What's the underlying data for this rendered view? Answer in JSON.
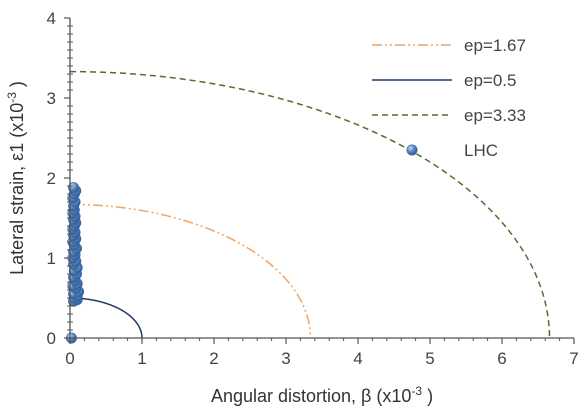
{
  "chart_data": {
    "type": "scatter",
    "title": "",
    "xlabel": {
      "main": "Angular distortion,  β (x10",
      "sup": "-3",
      "tail": " )"
    },
    "ylabel": {
      "main": "Lateral strain,  ε1 (x10",
      "sup": "-3",
      "tail": " )"
    },
    "xlim": [
      0,
      7
    ],
    "ylim": [
      0,
      4
    ],
    "x_ticks": [
      "0",
      "1",
      "2",
      "3",
      "4",
      "5",
      "6",
      "7"
    ],
    "y_ticks": [
      "0",
      "1",
      "2",
      "3",
      "4"
    ],
    "grid": false,
    "legend_position": "top-right",
    "series": [
      {
        "name": "ep=1.67",
        "kind": "ellipse-line",
        "ep": 1.67,
        "x_intercept": 3.34,
        "y_intercept": 1.67,
        "color": "#F4A460",
        "dash": "dash-dot-dot"
      },
      {
        "name": "ep=0.5",
        "kind": "ellipse-line",
        "ep": 0.5,
        "x_intercept": 1.0,
        "y_intercept": 0.5,
        "color": "#1F3864",
        "dash": "solid"
      },
      {
        "name": "ep=3.33",
        "kind": "ellipse-line",
        "ep": 3.33,
        "x_intercept": 6.66,
        "y_intercept": 3.33,
        "color": "#556B2F",
        "dash": "dashed"
      },
      {
        "name": "LHC",
        "kind": "points",
        "color": "#4F81BD",
        "points": [
          [
            0.02,
            0.0
          ],
          [
            0.05,
            0.46
          ],
          [
            0.1,
            0.48
          ],
          [
            0.06,
            0.5
          ],
          [
            0.1,
            0.52
          ],
          [
            0.05,
            0.55
          ],
          [
            0.12,
            0.58
          ],
          [
            0.08,
            0.62
          ],
          [
            0.04,
            0.65
          ],
          [
            0.1,
            0.68
          ],
          [
            0.07,
            0.72
          ],
          [
            0.05,
            0.76
          ],
          [
            0.09,
            0.8
          ],
          [
            0.06,
            0.84
          ],
          [
            0.1,
            0.88
          ],
          [
            0.05,
            0.92
          ],
          [
            0.08,
            0.96
          ],
          [
            0.04,
            1.0
          ],
          [
            0.07,
            1.04
          ],
          [
            0.05,
            1.08
          ],
          [
            0.09,
            1.12
          ],
          [
            0.06,
            1.16
          ],
          [
            0.04,
            1.2
          ],
          [
            0.08,
            1.24
          ],
          [
            0.05,
            1.28
          ],
          [
            0.07,
            1.32
          ],
          [
            0.04,
            1.36
          ],
          [
            0.06,
            1.4
          ],
          [
            0.08,
            1.44
          ],
          [
            0.05,
            1.48
          ],
          [
            0.07,
            1.52
          ],
          [
            0.04,
            1.56
          ],
          [
            0.06,
            1.6
          ],
          [
            0.05,
            1.65
          ],
          [
            0.07,
            1.7
          ],
          [
            0.04,
            1.75
          ],
          [
            0.06,
            1.8
          ],
          [
            0.08,
            1.84
          ],
          [
            0.05,
            1.88
          ]
        ]
      }
    ]
  }
}
